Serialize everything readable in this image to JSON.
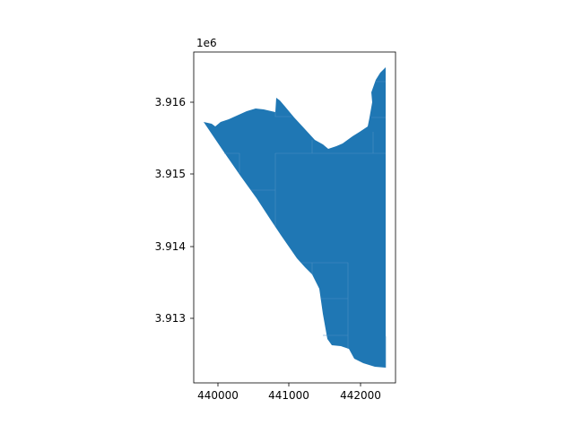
{
  "map": {
    "offset_label": "1e6",
    "fill_color": "#1f77b4",
    "edge_color": "#4a8ec2",
    "x_ticks": [
      {
        "value": 440000,
        "label": "440000"
      },
      {
        "value": 441000,
        "label": "441000"
      },
      {
        "value": 442000,
        "label": "442000"
      }
    ],
    "y_ticks": [
      {
        "value": 3913000,
        "label": "3.913"
      },
      {
        "value": 3914000,
        "label": "3.914"
      },
      {
        "value": 3915000,
        "label": "3.915"
      },
      {
        "value": 3916000,
        "label": "3.916"
      }
    ]
  }
}
